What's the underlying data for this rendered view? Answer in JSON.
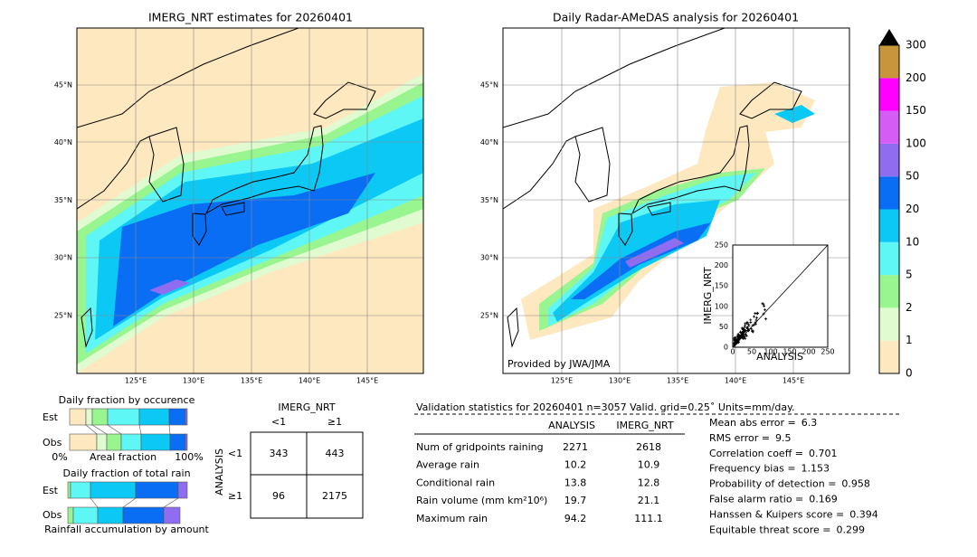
{
  "left_map": {
    "title": "IMERG_NRT estimates for 20260401",
    "lat_labels": [
      "45°N",
      "40°N",
      "35°N",
      "30°N",
      "25°N"
    ],
    "lon_labels": [
      "125°E",
      "130°E",
      "135°E",
      "140°E",
      "145°E"
    ]
  },
  "right_map": {
    "title": "Daily Radar-AMeDAS analysis for 20260401",
    "credit": "Provided by JWA/JMA",
    "lat_labels": [
      "45°N",
      "40°N",
      "35°N",
      "30°N",
      "25°N"
    ],
    "lon_labels": [
      "125°E",
      "130°E",
      "135°E",
      "140°E",
      "145°E"
    ]
  },
  "scatter_inset": {
    "xlabel": "ANALYSIS",
    "ylabel": "IMERG_NRT",
    "ticks": [
      "0",
      "50",
      "100",
      "150",
      "200",
      "250"
    ]
  },
  "colorbar": {
    "labels": [
      "0",
      "1",
      "2",
      "5",
      "10",
      "20",
      "50",
      "100",
      "150",
      "200",
      "300"
    ]
  },
  "occurrence": {
    "title": "Daily fraction by occurence",
    "rows": [
      "Est",
      "Obs"
    ],
    "axis_labels": [
      "0%",
      "Areal fraction",
      "100%"
    ]
  },
  "total_rain": {
    "title": "Daily fraction of total rain",
    "rows": [
      "Est",
      "Obs"
    ],
    "caption": "Rainfall accumulation by amount"
  },
  "contingency": {
    "column_title": "IMERG_NRT",
    "columns": [
      "<1",
      "≥1"
    ],
    "row_title": "ANALYSIS",
    "rows": [
      "<1",
      "≥1"
    ],
    "cells": [
      [
        "343",
        "443"
      ],
      [
        "96",
        "2175"
      ]
    ]
  },
  "validation": {
    "header": "Validation statistics for 20260401  n=3057 Valid. grid=0.25˚ Units=mm/day.",
    "columns": [
      "ANALYSIS",
      "IMERG_NRT"
    ],
    "rows": [
      {
        "label": "Num of gridpoints raining",
        "values": [
          "2271",
          "2618"
        ]
      },
      {
        "label": "Average rain",
        "values": [
          "10.2",
          "10.9"
        ]
      },
      {
        "label": "Conditional rain",
        "values": [
          "13.8",
          "12.8"
        ]
      },
      {
        "label": "Rain volume (mm km²10⁶)",
        "values": [
          "19.7",
          "21.1"
        ]
      },
      {
        "label": "Maximum rain",
        "values": [
          "94.2",
          "111.1"
        ]
      }
    ],
    "scores": [
      {
        "label": "Mean abs error =",
        "value": "6.3"
      },
      {
        "label": "RMS error =",
        "value": "9.5"
      },
      {
        "label": "Correlation coeff =",
        "value": "0.701"
      },
      {
        "label": "Frequency bias =",
        "value": "1.153"
      },
      {
        "label": "Probability of detection =",
        "value": "0.958"
      },
      {
        "label": "False alarm ratio =",
        "value": "0.169"
      },
      {
        "label": "Hanssen & Kuipers score =",
        "value": "0.394"
      },
      {
        "label": "Equitable threat score =",
        "value": "0.299"
      }
    ]
  }
}
